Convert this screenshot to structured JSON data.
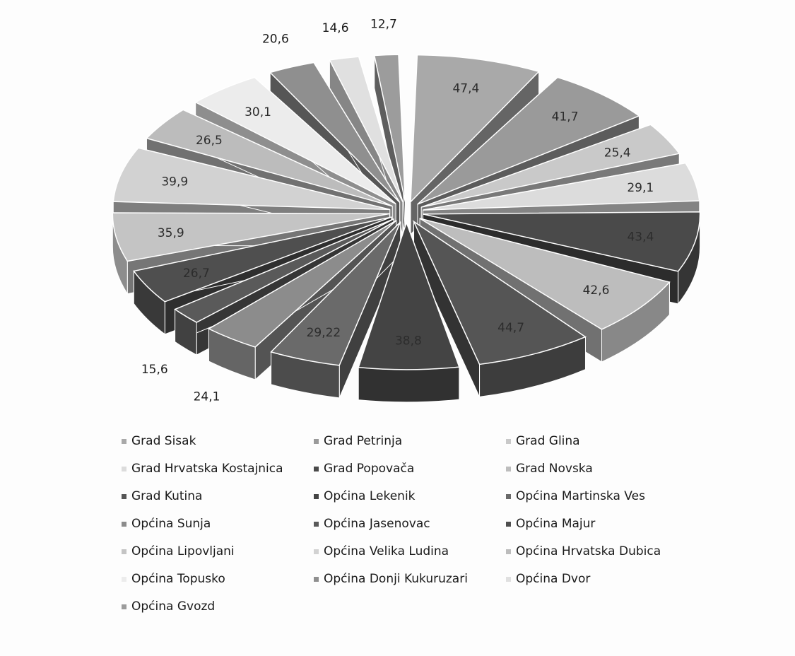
{
  "chart_data": {
    "type": "pie",
    "style": "3d-exploded",
    "decimal_separator": ",",
    "legend_position": "bottom",
    "categories": [
      "Grad Sisak",
      "Grad Petrinja",
      "Grad Glina",
      "Grad Hrvatska Kostajnica",
      "Grad Popovača",
      "Grad Novska",
      "Grad Kutina",
      "Općina Lekenik",
      "Općina Martinska Ves",
      "Općina Sunja",
      "Općina Jasenovac",
      "Općina Majur",
      "Općina Lipovljani",
      "Općina Velika Ludina",
      "Općina Hrvatska Dubica",
      "Općina Topusko",
      "Općina Donji Kukuruzari",
      "Općina Dvor",
      "Općina Gvozd"
    ],
    "values": [
      47.4,
      41.7,
      25.4,
      29.1,
      43.4,
      42.6,
      44.7,
      38.8,
      29.22,
      24.1,
      15.6,
      26.7,
      35.9,
      39.9,
      26.5,
      30.1,
      20.6,
      14.6,
      12.7
    ],
    "data_labels": [
      "47,4",
      "41,7",
      "25,4",
      "29,1",
      "43,4",
      "42,6",
      "44,7",
      "38,8",
      "29,22",
      "24,1",
      "15,6",
      "26,7",
      "35,9",
      "39,9",
      "26,5",
      "30,1",
      "20,6",
      "14,6",
      "12,7"
    ],
    "colors": [
      "#a9a9a9",
      "#9a9a9a",
      "#c9c9c9",
      "#dcdcdc",
      "#4a4a4a",
      "#bdbdbd",
      "#555555",
      "#444444",
      "#6a6a6a",
      "#8c8c8c",
      "#5a5a5a",
      "#4f4f4f",
      "#c4c4c4",
      "#d2d2d2",
      "#bcbcbc",
      "#ececec",
      "#8f8f8f",
      "#e0e0e0",
      "#9c9c9c"
    ]
  }
}
